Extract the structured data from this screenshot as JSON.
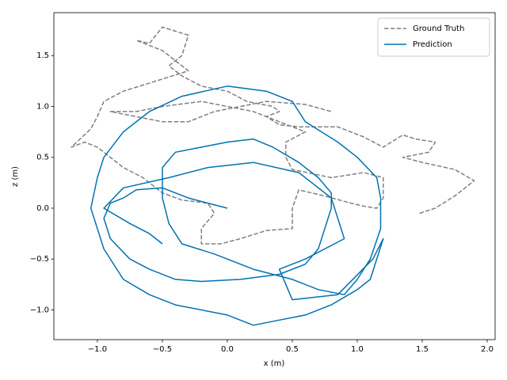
{
  "chart_data": {
    "type": "line",
    "xlabel": "x (m)",
    "ylabel": "z (m)",
    "xlim": [
      -1.335,
      2.061
    ],
    "ylim": [
      -1.292,
      1.922
    ],
    "xticks": [
      {
        "value": -1.0,
        "label": "−1.0"
      },
      {
        "value": -0.5,
        "label": "−0.5"
      },
      {
        "value": 0.0,
        "label": "0.0"
      },
      {
        "value": 0.5,
        "label": "0.5"
      },
      {
        "value": 1.0,
        "label": "1.0"
      },
      {
        "value": 1.5,
        "label": "1.5"
      },
      {
        "value": 2.0,
        "label": "2.0"
      }
    ],
    "yticks": [
      {
        "value": -1.0,
        "label": "−1.0"
      },
      {
        "value": -0.5,
        "label": "−0.5"
      },
      {
        "value": 0.0,
        "label": "0.0"
      },
      {
        "value": 0.5,
        "label": "0.5"
      },
      {
        "value": 1.0,
        "label": "1.0"
      },
      {
        "value": 1.5,
        "label": "1.5"
      }
    ],
    "legend": "upper right",
    "series": [
      {
        "name": "Ground Truth",
        "color": "#808080",
        "linestyle": "dashed",
        "x": [
          1.48,
          1.6,
          1.75,
          1.9,
          1.75,
          1.5,
          1.35,
          1.55,
          1.6,
          1.45,
          1.35,
          1.2,
          1.05,
          0.85,
          0.55,
          0.4,
          0.3,
          0.4,
          0.35,
          0.15,
          0.0,
          -0.2,
          -0.35,
          -0.45,
          -0.35,
          -0.3,
          -0.5,
          -0.6,
          -0.7,
          -0.5,
          -0.3,
          -0.55,
          -0.8,
          -0.95,
          -1.0,
          -1.05,
          -1.2,
          -1.1,
          -1.0,
          -0.9,
          -0.8,
          -0.65,
          -0.5,
          -0.35,
          -0.15,
          -0.1,
          -0.2,
          -0.2,
          -0.05,
          0.1,
          0.3,
          0.5,
          0.5,
          0.55,
          0.75,
          0.95,
          1.05,
          1.15,
          1.2,
          1.2,
          1.05,
          0.8,
          0.5,
          0.45,
          0.45,
          0.6,
          0.4,
          0.2,
          -0.2,
          -0.5,
          -0.7,
          -0.9,
          -0.5,
          -0.3,
          -0.1,
          0.3,
          0.6,
          0.8
        ],
        "values": [
          -0.05,
          0.0,
          0.12,
          0.27,
          0.38,
          0.45,
          0.5,
          0.55,
          0.65,
          0.68,
          0.72,
          0.6,
          0.7,
          0.8,
          0.8,
          0.82,
          0.9,
          0.95,
          1.0,
          1.05,
          1.15,
          1.2,
          1.3,
          1.4,
          1.5,
          1.7,
          1.78,
          1.62,
          1.65,
          1.55,
          1.35,
          1.25,
          1.15,
          1.05,
          0.9,
          0.78,
          0.6,
          0.65,
          0.6,
          0.5,
          0.4,
          0.3,
          0.15,
          0.08,
          0.05,
          -0.05,
          -0.2,
          -0.35,
          -0.35,
          -0.3,
          -0.22,
          -0.2,
          0.0,
          0.18,
          0.12,
          0.05,
          0.02,
          0.0,
          0.1,
          0.3,
          0.35,
          0.3,
          0.38,
          0.5,
          0.65,
          0.75,
          0.85,
          0.95,
          1.05,
          1.0,
          0.95,
          0.95,
          0.85,
          0.85,
          0.95,
          1.05,
          1.02,
          0.95
        ]
      },
      {
        "name": "Prediction",
        "color": "#0072b2",
        "linestyle": "solid",
        "x": [
          0.0,
          -0.15,
          -0.3,
          -0.5,
          -0.7,
          -0.8,
          -0.9,
          -0.95,
          -0.9,
          -0.75,
          -0.6,
          -0.4,
          -0.2,
          0.1,
          0.4,
          0.6,
          0.7,
          0.75,
          0.8,
          0.8,
          0.7,
          0.55,
          0.35,
          0.2,
          0.0,
          -0.2,
          -0.4,
          -0.5,
          -0.5,
          -0.45,
          -0.35,
          -0.1,
          0.2,
          0.5,
          0.7,
          0.9,
          1.0,
          1.1,
          1.18,
          1.18,
          1.15,
          1.0,
          0.85,
          0.6,
          0.5,
          0.3,
          0.0,
          -0.35,
          -0.6,
          -0.8,
          -0.95,
          -1.0,
          -1.05,
          -0.95,
          -0.8,
          -0.6,
          -0.4,
          0.0,
          0.2,
          0.4,
          0.6,
          0.8,
          1.0,
          1.1,
          1.2,
          1.12,
          0.85,
          0.5,
          0.4,
          0.6,
          0.9,
          0.8,
          0.55,
          0.2,
          -0.15,
          -0.45,
          -0.8,
          -0.95,
          -0.75,
          -0.6,
          -0.5
        ],
        "values": [
          0.0,
          0.05,
          0.1,
          0.2,
          0.18,
          0.1,
          0.05,
          -0.1,
          -0.3,
          -0.5,
          -0.6,
          -0.7,
          -0.72,
          -0.7,
          -0.65,
          -0.55,
          -0.4,
          -0.2,
          0.0,
          0.15,
          0.3,
          0.45,
          0.6,
          0.68,
          0.65,
          0.6,
          0.55,
          0.4,
          0.1,
          -0.15,
          -0.35,
          -0.45,
          -0.6,
          -0.7,
          -0.8,
          -0.85,
          -0.7,
          -0.5,
          -0.2,
          0.1,
          0.3,
          0.5,
          0.65,
          0.85,
          1.05,
          1.15,
          1.2,
          1.1,
          0.95,
          0.75,
          0.5,
          0.3,
          0.0,
          -0.4,
          -0.7,
          -0.85,
          -0.95,
          -1.05,
          -1.15,
          -1.1,
          -1.05,
          -0.95,
          -0.8,
          -0.7,
          -0.3,
          -0.5,
          -0.85,
          -0.9,
          -0.6,
          -0.5,
          -0.3,
          0.1,
          0.35,
          0.45,
          0.4,
          0.3,
          0.2,
          0.0,
          -0.15,
          -0.25,
          -0.35
        ]
      }
    ]
  }
}
